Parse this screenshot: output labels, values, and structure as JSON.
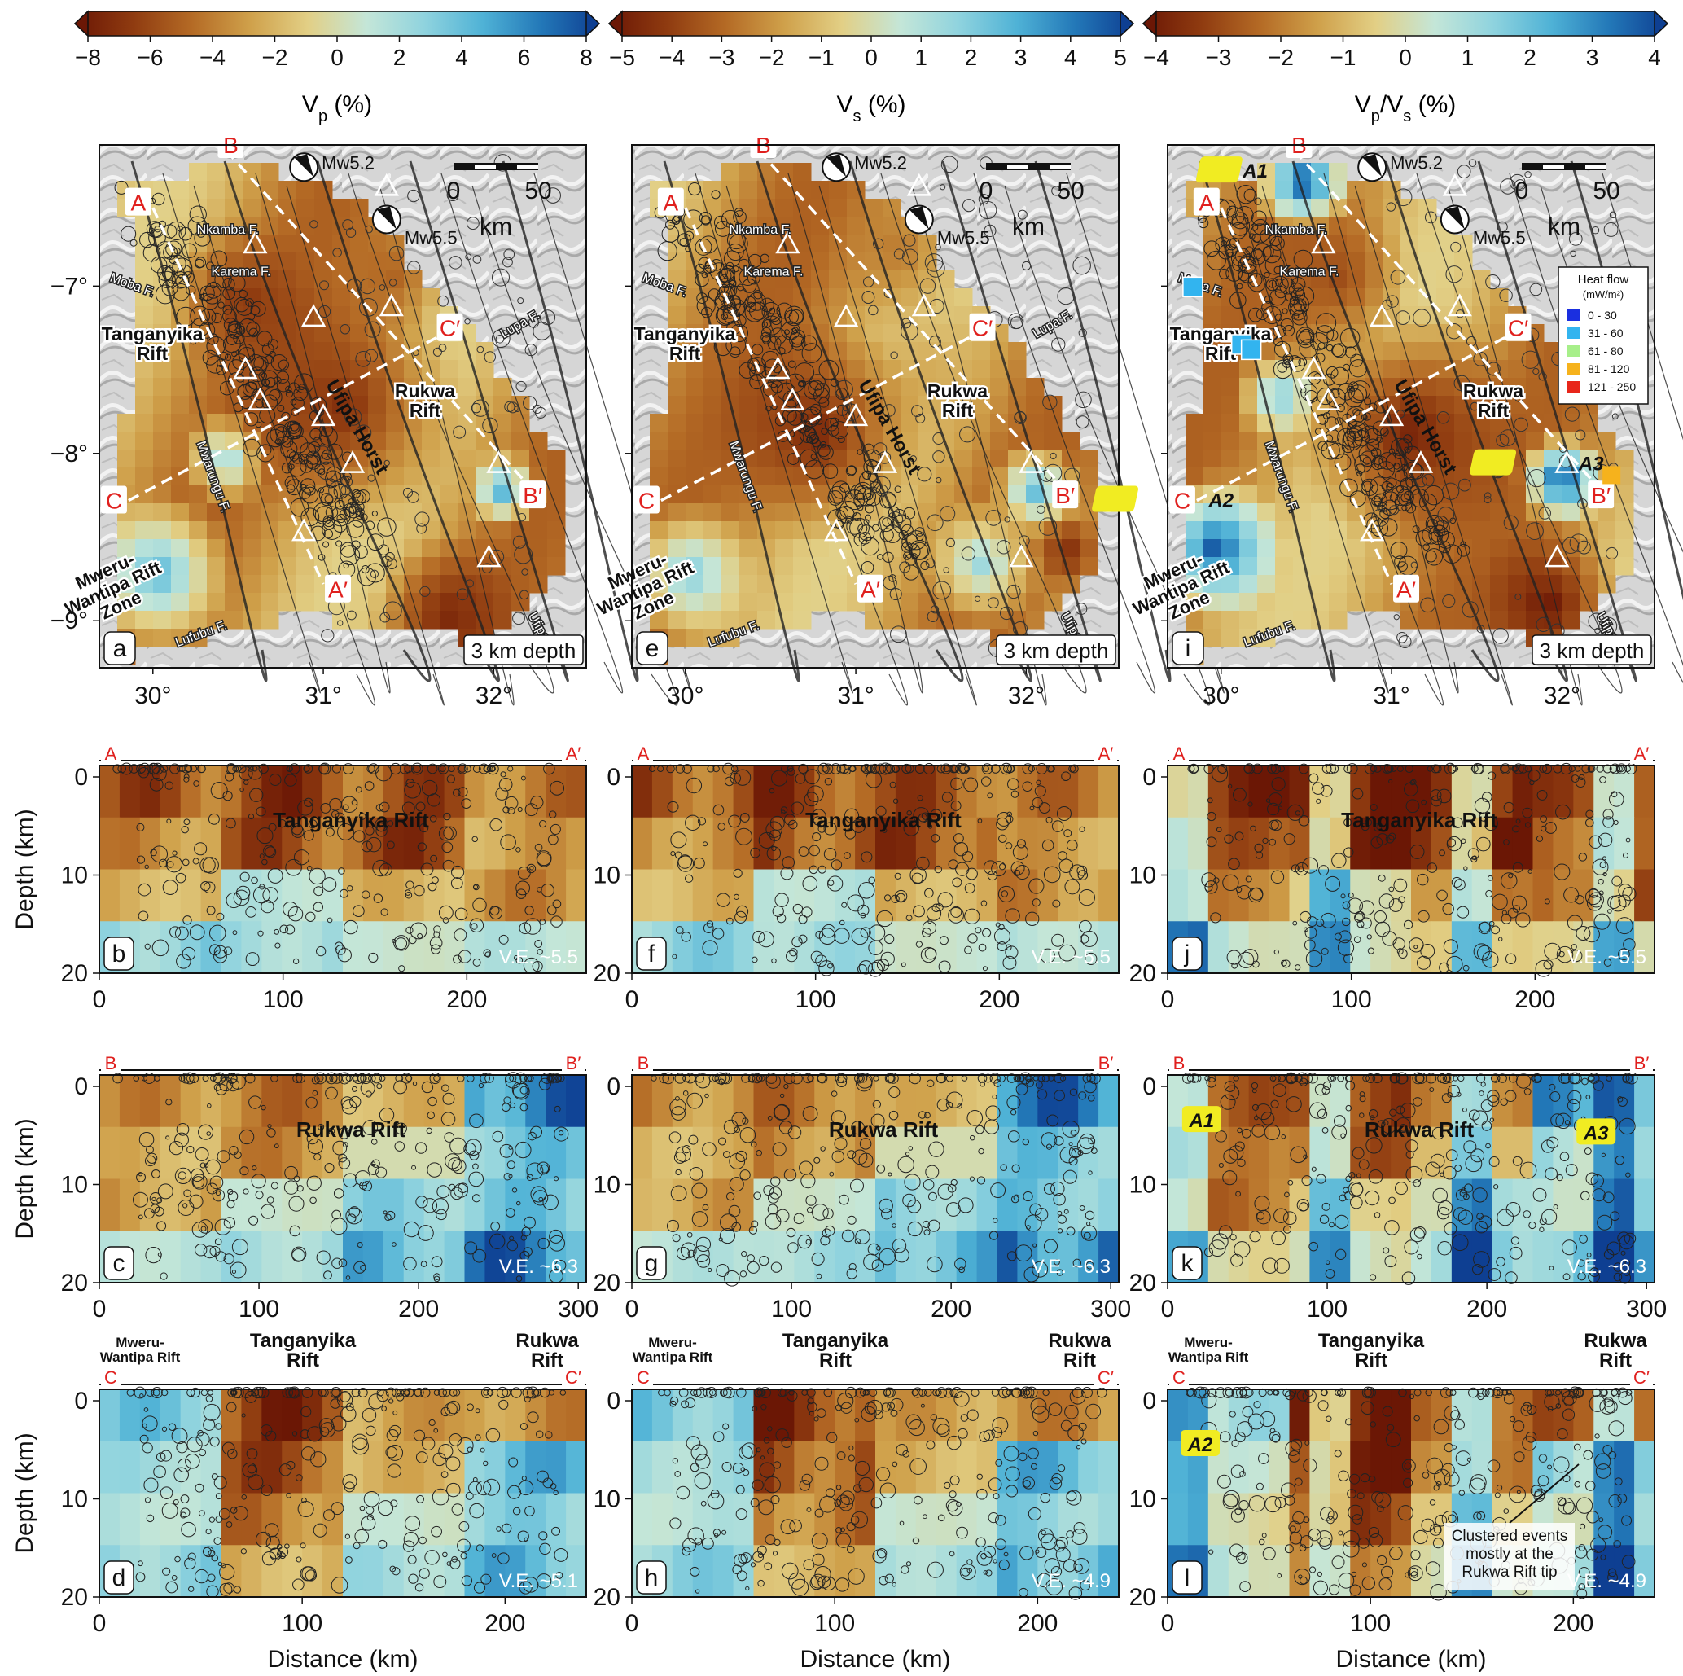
{
  "colorbars": [
    {
      "id": "vp",
      "ticks": [
        "−8",
        "−6",
        "−4",
        "−2",
        "0",
        "2",
        "4",
        "6",
        "8"
      ],
      "label": "V_p (%)",
      "label_main": "V",
      "label_sub": "p",
      "label_tail": " (%)"
    },
    {
      "id": "vs",
      "ticks": [
        "−5",
        "−4",
        "−3",
        "−2",
        "−1",
        "0",
        "1",
        "2",
        "3",
        "4",
        "5"
      ],
      "label": "V_s (%)",
      "label_main": "V",
      "label_sub": "s",
      "label_tail": " (%)"
    },
    {
      "id": "vpvs",
      "ticks": [
        "−4",
        "−3",
        "−2",
        "−1",
        "0",
        "1",
        "2",
        "3",
        "4"
      ],
      "label": "V_p/V_s (%)",
      "label_main": "V",
      "label_sub": "p",
      "label_mid": "/V",
      "label_sub2": "s",
      "label_tail": " (%)"
    }
  ],
  "colors": {
    "scale": [
      "#6b1705",
      "#8f3b10",
      "#b46a25",
      "#cfa04a",
      "#e2cf85",
      "#c4e6d8",
      "#8fd3de",
      "#4fb2d6",
      "#2378b8",
      "#0e3f92"
    ],
    "blue": "#1e74b6",
    "cyan": "#8fd3de",
    "tan": "#c99a4f",
    "brown": "#8a3411",
    "red_label": "#e0201e"
  },
  "maps": [
    {
      "panel": "a",
      "depth": "3 km depth",
      "scale_labels": [
        "0",
        "50"
      ],
      "scale_unit": "km",
      "mw1": "Mw5.2",
      "mw2": "Mw5.5",
      "place": {
        "tang": "Tanganyika\nRift",
        "rukwa": "Rukwa\nRift",
        "ufipa": "Ufipa Horst",
        "mweru": "Mweru-\nWantipa Rift\nZone"
      },
      "faults": [
        "Nkamba F.",
        "Karema F.",
        "Moba F.",
        "Mwarungu F.",
        "Lupa F.",
        "Ufipa F.",
        "Lufubu F."
      ],
      "profiles": [
        "A",
        "A′",
        "B",
        "B′",
        "C",
        "C′"
      ]
    },
    {
      "panel": "e",
      "depth": "3 km depth",
      "scale_labels": [
        "0",
        "50"
      ],
      "scale_unit": "km",
      "mw1": "Mw5.2",
      "mw2": "Mw5.5",
      "profiles": [
        "A",
        "A′",
        "B",
        "B′",
        "C",
        "C′"
      ]
    },
    {
      "panel": "i",
      "depth": "3 km depth",
      "scale_labels": [
        "0",
        "50"
      ],
      "scale_unit": "km",
      "mw1": "Mw5.2",
      "mw2": "Mw5.5",
      "anomalies": [
        "A1",
        "A2",
        "A3"
      ],
      "profiles": [
        "A",
        "A′",
        "B",
        "B′",
        "C",
        "C′"
      ],
      "heatflow": {
        "title": "Heat flow",
        "unit": "(mW/m²)",
        "entries": [
          {
            "color": "#1a2fe0",
            "label": "0 - 30"
          },
          {
            "color": "#32b4ef",
            "label": "31 - 60"
          },
          {
            "color": "#a7ef8a",
            "label": "61 - 80"
          },
          {
            "color": "#f6b21c",
            "label": "81 - 120"
          },
          {
            "color": "#e8261a",
            "label": "121 - 250"
          }
        ]
      }
    }
  ],
  "map_axes": {
    "x": [
      "30°",
      "31°",
      "32°"
    ],
    "y": [
      "−7°",
      "−8°",
      "−9°"
    ]
  },
  "sections": [
    {
      "row": "A",
      "panels": [
        "b",
        "f",
        "j"
      ],
      "ends": [
        "A",
        "A′"
      ],
      "title": "Tanganyika  Rift",
      "ve": "V.E. ~5.5",
      "xticks": [
        "0",
        "100",
        "200"
      ],
      "yticks": [
        "0",
        "10",
        "20"
      ],
      "ylabel": "Depth (km)"
    },
    {
      "row": "B",
      "panels": [
        "c",
        "g",
        "k"
      ],
      "ends": [
        "B",
        "B′"
      ],
      "title": "Rukwa  Rift",
      "ve": "V.E. ~6.3",
      "xticks": [
        "0",
        "100",
        "200",
        "300"
      ],
      "yticks": [
        "0",
        "10",
        "20"
      ],
      "ylabel": "Depth (km)",
      "anomalies": [
        "A1",
        "A3"
      ]
    },
    {
      "row": "C",
      "panels": [
        "d",
        "h",
        "l"
      ],
      "ends": [
        "C",
        "C′"
      ],
      "ve": [
        "V.E. ~5.1",
        "V.E. ~4.9",
        "V.E. ~4.9"
      ],
      "xticks": [
        "0",
        "100",
        "200"
      ],
      "yticks": [
        "0",
        "10",
        "20"
      ],
      "ylabel": "Depth (km)",
      "xlabel": "Distance (km)",
      "headers": {
        "mweru": "Mweru-\nWantipa Rift",
        "tang": "Tanganyika\nRift",
        "rukwa": "Rukwa\nRift"
      },
      "anomaly": "A2",
      "note": "Clustered events\nmostly at the\nRukwa Rift tip"
    }
  ]
}
